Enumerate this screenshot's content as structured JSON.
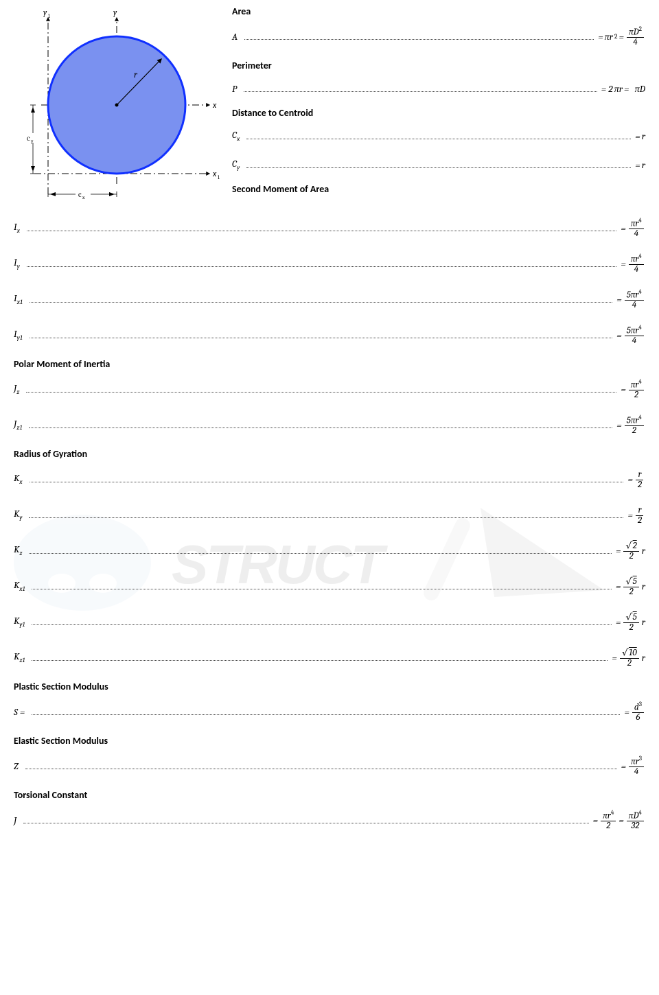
{
  "watermark_text": "STRUCT",
  "diagram": {
    "circle_fill": "#7a91f0",
    "circle_stroke": "#1030ff",
    "radius_label": "r",
    "axis_labels": {
      "x": "x",
      "x1": "x",
      "x1_sub": "1",
      "y": "y",
      "y1": "y",
      "y1_sub": "1"
    },
    "cx_label": "c",
    "cx_sub": "x",
    "cy_label": "c",
    "cy_sub": "y"
  },
  "sections": {
    "area": {
      "title": "Area",
      "rows": [
        {
          "sym": "A",
          "sub": "",
          "rhs_html": "= <i>πr</i><span class='sup'>2</span> = <span class='frac'><span class='num'><i>πD</i><span class='sup'>2</span></span><span class='den'>4</span></span>"
        }
      ]
    },
    "perimeter": {
      "title": "Perimeter",
      "rows": [
        {
          "sym": "P",
          "sub": "",
          "rhs_html": "= 2<i>πr</i> = &nbsp;<i>πD</i>"
        }
      ]
    },
    "centroid": {
      "title": "Distance to Centroid",
      "rows": [
        {
          "sym": "C",
          "sub": "x",
          "rhs_html": "= <i>r</i>"
        },
        {
          "sym": "C",
          "sub": "y",
          "rhs_html": "= <i>r</i>"
        }
      ]
    },
    "second_moment": {
      "title": "Second Moment of Area",
      "rows": [
        {
          "sym": "I",
          "sub": "x",
          "rhs_html": "= <span class='frac'><span class='num'><i>πr</i><span class='sup'>4</span></span><span class='den'>4</span></span>"
        },
        {
          "sym": "I",
          "sub": "y",
          "rhs_html": "= <span class='frac'><span class='num'><i>πr</i><span class='sup'>4</span></span><span class='den'>4</span></span>"
        },
        {
          "sym": "I",
          "sub": "x1",
          "rhs_html": "= <span class='frac'><span class='num'>5<i>πr</i><span class='sup'>4</span></span><span class='den'>4</span></span>"
        },
        {
          "sym": "I",
          "sub": "y1",
          "rhs_html": "= <span class='frac'><span class='num'>5<i>πr</i><span class='sup'>4</span></span><span class='den'>4</span></span>"
        }
      ]
    },
    "polar": {
      "title": "Polar Moment of Inertia",
      "rows": [
        {
          "sym": "J",
          "sub": "z",
          "rhs_html": "= <span class='frac'><span class='num'><i>πr</i><span class='sup'>4</span></span><span class='den'>2</span></span>"
        },
        {
          "sym": "J",
          "sub": "z1",
          "rhs_html": "= <span class='frac'><span class='num'>5<i>πr</i><span class='sup'>4</span></span><span class='den'>2</span></span>"
        }
      ]
    },
    "gyration": {
      "title": "Radius of Gyration",
      "rows": [
        {
          "sym": "K",
          "sub": "x",
          "rhs_html": "= <span class='frac'><span class='num'><i>r</i></span><span class='den'>2</span></span>"
        },
        {
          "sym": "K",
          "sub": "y",
          "rhs_html": "= <span class='frac'><span class='num'><i>r</i></span><span class='den'>2</span></span>"
        },
        {
          "sym": "K",
          "sub": "z",
          "rhs_html": "= <span class='frac'><span class='num'>√<span class='overline'>2</span></span><span class='den'>2</span></span> <i>r</i>"
        },
        {
          "sym": "K",
          "sub": "x1",
          "rhs_html": "= <span class='frac'><span class='num'>√<span class='overline'>5</span></span><span class='den'>2</span></span> <i>r</i>"
        },
        {
          "sym": "K",
          "sub": "y1",
          "rhs_html": "= <span class='frac'><span class='num'>√<span class='overline'>5</span></span><span class='den'>2</span></span> <i>r</i>"
        },
        {
          "sym": "K",
          "sub": "z1",
          "rhs_html": "= <span class='frac'><span class='num'>√<span class='overline'>10</span></span><span class='den'>2</span></span> <i>r</i>"
        }
      ]
    },
    "plastic": {
      "title": "Plastic Section Modulus",
      "rows": [
        {
          "sym": "S =",
          "sub": "",
          "rhs_html": "= <span class='frac'><span class='num'><i>d</i><span class='sup'>3</span></span><span class='den'>6</span></span>"
        }
      ]
    },
    "elastic": {
      "title": "Elastic Section Modulus",
      "rows": [
        {
          "sym": "Z",
          "sub": "",
          "rhs_html": "= <span class='frac'><span class='num'><i>πr</i><span class='sup'>3</span></span><span class='den'>4</span></span>"
        }
      ]
    },
    "torsion": {
      "title": "Torsional Constant",
      "rows": [
        {
          "sym": "J",
          "sub": "",
          "rhs_html": "= <span class='frac'><span class='num'><i>πr</i><span class='sup'>4</span></span><span class='den'>2</span></span> = <span class='frac'><span class='num'><i>πD</i><span class='sup'>4</span></span><span class='den'>32</span></span>"
        }
      ]
    }
  }
}
